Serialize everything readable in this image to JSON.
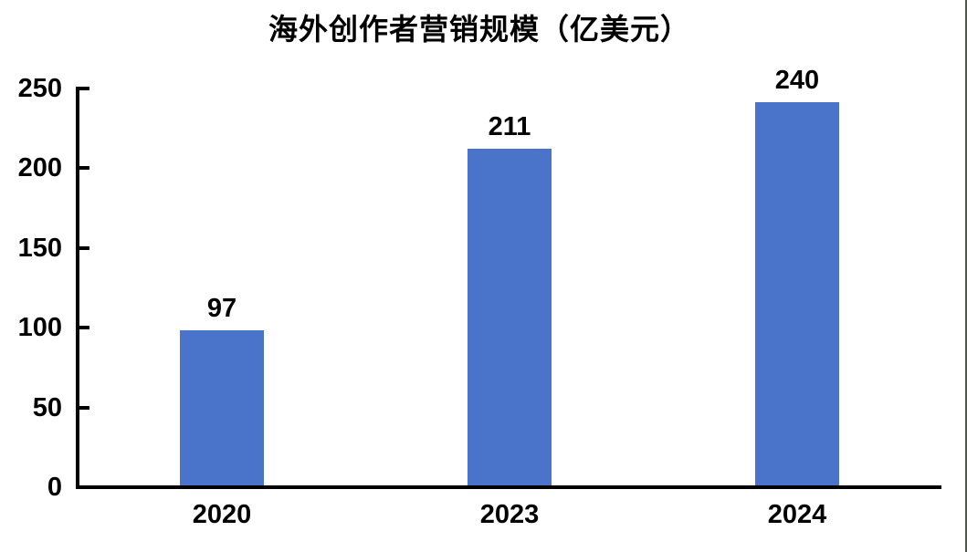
{
  "chart_data": {
    "type": "bar",
    "title": "海外创作者营销规模（亿美元）",
    "categories": [
      "2020",
      "2023",
      "2024"
    ],
    "values": [
      97,
      211,
      240
    ],
    "ylim": [
      0,
      250
    ],
    "yticks": [
      0,
      50,
      100,
      150,
      200,
      250
    ],
    "xlabel": "",
    "ylabel": "",
    "grid": false,
    "legend": false,
    "bar_color": "#4a74ca",
    "axis_color": "#000000",
    "label_color": "#000000"
  },
  "frame": {
    "right_border_color": "#4a5c49"
  }
}
